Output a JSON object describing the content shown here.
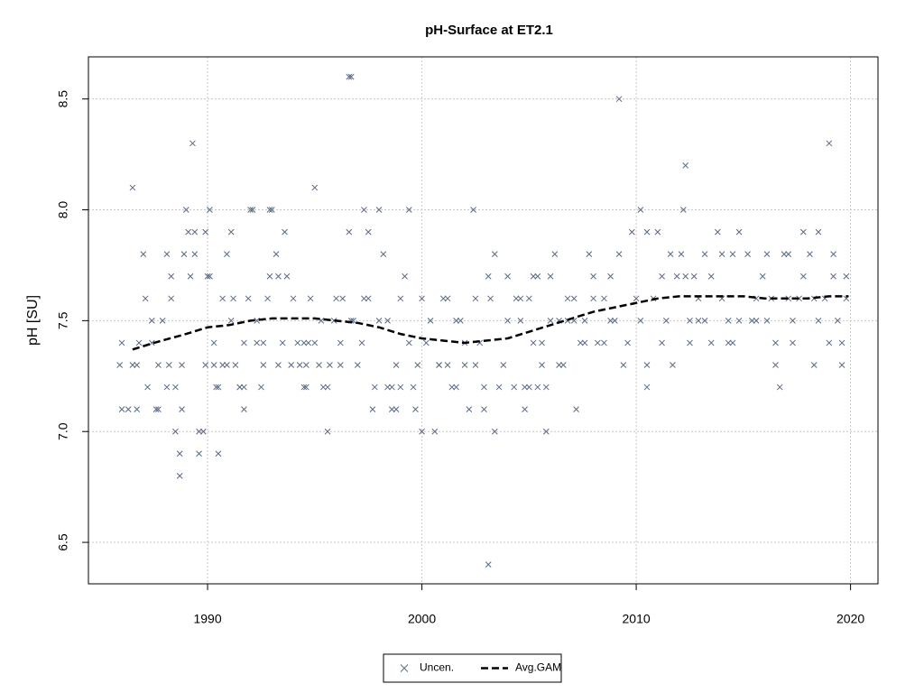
{
  "chart_data": {
    "type": "scatter",
    "title": "pH-Surface at ET2.1",
    "y_label": "pH [SU]",
    "xlim": [
      1984.44,
      2021.28
    ],
    "ylim": [
      6.313,
      8.69
    ],
    "xticks": [
      1990,
      2000,
      2010,
      2020
    ],
    "yticks": [
      6.5,
      {
        "value": 7,
        "label": "7.0"
      },
      7.5,
      {
        "value": 8,
        "label": "8.0"
      },
      8.5
    ],
    "grid": true,
    "legend": "bottom",
    "series": [
      {
        "name": "Uncen.",
        "type": "scatter",
        "color": "#5a6a85",
        "x": [
          1985.9,
          1986.0,
          1986.0,
          1986.3,
          1986.5,
          1986.5,
          1986.7,
          1986.7,
          1986.8,
          1987.0,
          1987.1,
          1987.2,
          1987.4,
          1987.4,
          1987.6,
          1987.7,
          1987.7,
          1987.9,
          1988.1,
          1988.1,
          1988.2,
          1988.3,
          1988.3,
          1988.5,
          1988.5,
          1988.7,
          1988.7,
          1988.8,
          1988.8,
          1988.9,
          1989.0,
          1989.1,
          1989.2,
          1989.3,
          1989.4,
          1989.4,
          1989.6,
          1989.6,
          1989.8,
          1989.9,
          1989.9,
          1990.0,
          1990.1,
          1990.1,
          1990.3,
          1990.3,
          1990.4,
          1990.5,
          1990.5,
          1990.7,
          1990.7,
          1990.9,
          1990.9,
          1991.1,
          1991.1,
          1991.2,
          1991.3,
          1991.5,
          1991.5,
          1991.7,
          1991.7,
          1991.7,
          1991.9,
          1992.0,
          1992.1,
          1992.3,
          1992.3,
          1992.5,
          1992.6,
          1992.6,
          1992.8,
          1992.9,
          1992.9,
          1993.0,
          1993.2,
          1993.3,
          1993.3,
          1993.5,
          1993.6,
          1993.7,
          1993.9,
          1994.0,
          1994.2,
          1994.3,
          1994.5,
          1994.5,
          1994.6,
          1994.6,
          1994.7,
          1994.8,
          1995.0,
          1995.0,
          1995.2,
          1995.3,
          1995.4,
          1995.6,
          1995.6,
          1995.7,
          1995.9,
          1996.0,
          1996.2,
          1996.2,
          1996.3,
          1996.6,
          1996.6,
          1996.7,
          1996.7,
          1996.8,
          1997.0,
          1997.2,
          1997.3,
          1997.3,
          1997.5,
          1997.5,
          1997.7,
          1997.8,
          1998.0,
          1998.0,
          1998.2,
          1998.4,
          1998.4,
          1998.6,
          1998.6,
          1998.8,
          1998.8,
          1999.0,
          1999.0,
          1999.2,
          1999.4,
          1999.4,
          1999.6,
          1999.7,
          1999.8,
          2000.0,
          2000.0,
          2000.2,
          2000.4,
          2000.6,
          2000.8,
          2000.8,
          2001.0,
          2001.2,
          2001.2,
          2001.4,
          2001.6,
          2001.6,
          2001.8,
          2002.0,
          2002.0,
          2002.2,
          2002.4,
          2002.5,
          2002.5,
          2002.7,
          2002.9,
          2002.9,
          2003.1,
          2003.1,
          2003.2,
          2003.4,
          2003.4,
          2003.6,
          2003.8,
          2004.0,
          2004.0,
          2004.3,
          2004.4,
          2004.6,
          2004.6,
          2004.8,
          2004.8,
          2005.0,
          2005.0,
          2005.2,
          2005.2,
          2005.4,
          2005.4,
          2005.6,
          2005.6,
          2005.8,
          2005.8,
          2006.0,
          2006.0,
          2006.2,
          2006.4,
          2006.4,
          2006.6,
          2006.8,
          2006.8,
          2007.1,
          2007.1,
          2007.2,
          2007.4,
          2007.6,
          2007.6,
          2007.8,
          2008.0,
          2008.0,
          2008.2,
          2008.5,
          2008.5,
          2008.8,
          2008.8,
          2009.0,
          2009.2,
          2009.2,
          2009.4,
          2009.6,
          2009.8,
          2010.0,
          2010.2,
          2010.2,
          2010.5,
          2010.5,
          2010.5,
          2010.8,
          2011.0,
          2011.2,
          2011.2,
          2011.4,
          2011.6,
          2011.7,
          2011.9,
          2012.1,
          2012.2,
          2012.3,
          2012.3,
          2012.5,
          2012.5,
          2012.7,
          2012.9,
          2012.9,
          2013.2,
          2013.2,
          2013.5,
          2013.5,
          2013.8,
          2014.0,
          2014.0,
          2014.3,
          2014.3,
          2014.5,
          2014.5,
          2014.8,
          2014.8,
          2015.2,
          2015.4,
          2015.6,
          2015.6,
          2015.9,
          2016.1,
          2016.1,
          2016.3,
          2016.5,
          2016.5,
          2016.7,
          2016.9,
          2017.1,
          2017.1,
          2017.3,
          2017.3,
          2017.6,
          2017.8,
          2017.8,
          2018.1,
          2018.3,
          2018.3,
          2018.5,
          2018.5,
          2018.8,
          2019.0,
          2019.0,
          2019.2,
          2019.2,
          2019.4,
          2019.6,
          2019.6,
          2019.8,
          2019.8
        ],
        "values": [
          7.3,
          7.4,
          7.1,
          7.1,
          8.1,
          7.3,
          7.1,
          7.3,
          7.4,
          7.8,
          7.6,
          7.2,
          7.5,
          7.4,
          7.1,
          7.1,
          7.3,
          7.5,
          7.2,
          7.8,
          7.3,
          7.7,
          7.6,
          7.0,
          7.2,
          6.8,
          6.9,
          7.1,
          7.3,
          7.8,
          8.0,
          7.9,
          7.7,
          8.3,
          7.9,
          7.8,
          6.9,
          7.0,
          7.0,
          7.9,
          7.3,
          7.7,
          8.0,
          7.7,
          7.4,
          7.3,
          7.2,
          6.9,
          7.2,
          7.3,
          7.6,
          7.8,
          7.3,
          7.9,
          7.5,
          7.6,
          7.3,
          7.2,
          7.2,
          7.1,
          7.4,
          7.2,
          7.6,
          8.0,
          8.0,
          7.5,
          7.4,
          7.2,
          7.3,
          7.4,
          7.6,
          8.0,
          7.7,
          8.0,
          7.8,
          7.7,
          7.3,
          7.4,
          7.9,
          7.7,
          7.3,
          7.6,
          7.4,
          7.3,
          7.4,
          7.2,
          7.3,
          7.2,
          7.4,
          7.6,
          8.1,
          7.4,
          7.3,
          7.5,
          7.2,
          7.0,
          7.2,
          7.3,
          7.5,
          7.6,
          7.4,
          7.3,
          7.6,
          7.9,
          8.6,
          8.6,
          7.5,
          7.5,
          7.3,
          7.4,
          8.0,
          7.6,
          7.9,
          7.6,
          7.1,
          7.2,
          7.5,
          8.0,
          7.8,
          7.2,
          7.5,
          7.1,
          7.2,
          7.1,
          7.3,
          7.6,
          7.2,
          7.7,
          8.0,
          7.4,
          7.2,
          7.1,
          7.3,
          7.0,
          7.6,
          7.4,
          7.5,
          7.0,
          7.3,
          7.3,
          7.6,
          7.6,
          7.3,
          7.2,
          7.5,
          7.2,
          7.5,
          7.3,
          7.4,
          7.1,
          8.0,
          7.6,
          7.3,
          7.4,
          7.2,
          7.1,
          7.7,
          6.4,
          7.6,
          7.8,
          7.0,
          7.2,
          7.3,
          7.7,
          7.5,
          7.2,
          7.6,
          7.6,
          7.5,
          7.1,
          7.2,
          7.6,
          7.2,
          7.7,
          7.4,
          7.7,
          7.2,
          7.3,
          7.4,
          7.0,
          7.2,
          7.7,
          7.5,
          7.8,
          7.5,
          7.3,
          7.3,
          7.6,
          7.5,
          7.6,
          7.5,
          7.1,
          7.4,
          7.4,
          7.5,
          7.8,
          7.6,
          7.7,
          7.4,
          7.6,
          7.4,
          7.7,
          7.5,
          7.5,
          8.5,
          7.8,
          7.3,
          7.4,
          7.9,
          7.6,
          8.0,
          7.5,
          7.9,
          7.3,
          7.2,
          7.6,
          7.9,
          7.7,
          7.4,
          7.5,
          7.8,
          7.3,
          7.7,
          7.8,
          8.0,
          8.2,
          7.7,
          7.5,
          7.4,
          7.7,
          7.5,
          7.6,
          7.8,
          7.5,
          7.4,
          7.7,
          7.9,
          7.6,
          7.8,
          7.4,
          7.5,
          7.8,
          7.4,
          7.9,
          7.5,
          7.8,
          7.5,
          7.5,
          7.6,
          7.7,
          7.8,
          7.5,
          7.6,
          7.3,
          7.4,
          7.2,
          7.8,
          7.8,
          7.6,
          7.4,
          7.5,
          7.6,
          7.9,
          7.7,
          7.8,
          7.3,
          7.6,
          7.5,
          7.9,
          7.6,
          8.3,
          7.4,
          7.7,
          7.8,
          7.5,
          7.3,
          7.4,
          7.7,
          7.6
        ]
      },
      {
        "name": "Avg.GAM",
        "type": "line",
        "color": "#000000",
        "dashed": true,
        "x": [
          1986.5,
          1987.5,
          1989,
          1990,
          1991,
          1992,
          1993,
          1994,
          1995,
          1996,
          1997,
          1998,
          1999,
          2000,
          2001,
          2002,
          2003,
          2004,
          2005,
          2006,
          2007,
          2008,
          2009,
          2010,
          2011,
          2012,
          2013,
          2014,
          2015,
          2016,
          2017,
          2018,
          2019,
          2019.9
        ],
        "values": [
          7.37,
          7.4,
          7.44,
          7.47,
          7.48,
          7.5,
          7.51,
          7.51,
          7.51,
          7.5,
          7.49,
          7.47,
          7.44,
          7.42,
          7.41,
          7.4,
          7.41,
          7.42,
          7.45,
          7.48,
          7.51,
          7.54,
          7.56,
          7.58,
          7.6,
          7.61,
          7.61,
          7.61,
          7.61,
          7.6,
          7.6,
          7.6,
          7.61,
          7.61
        ]
      }
    ]
  }
}
